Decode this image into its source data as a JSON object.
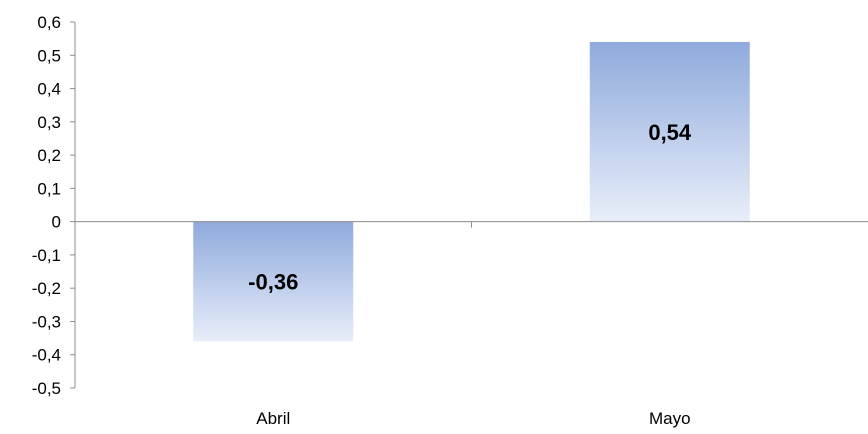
{
  "chart_data": {
    "type": "bar",
    "categories": [
      "Abril",
      "Mayo"
    ],
    "values": [
      -0.36,
      0.54
    ],
    "data_labels": [
      "-0,36",
      "0,54"
    ],
    "title": "",
    "xlabel": "",
    "ylabel": "",
    "ylim": [
      -0.5,
      0.6
    ],
    "y_tick_values": [
      0.6,
      0.5,
      0.4,
      0.3,
      0.2,
      0.1,
      0,
      -0.1,
      -0.2,
      -0.3,
      -0.4,
      -0.5
    ],
    "y_tick_labels": [
      "0,6",
      "0,5",
      "0,4",
      "0,3",
      "0,2",
      "0,1",
      "0",
      "-0,1",
      "-0,2",
      "-0,3",
      "-0,4",
      "-0,5"
    ],
    "grid": false,
    "legend": "none",
    "colors": {
      "bar_top": "#8faadc",
      "bar_bottom": "#e8eef9",
      "axis": "#8c8c8c"
    }
  }
}
